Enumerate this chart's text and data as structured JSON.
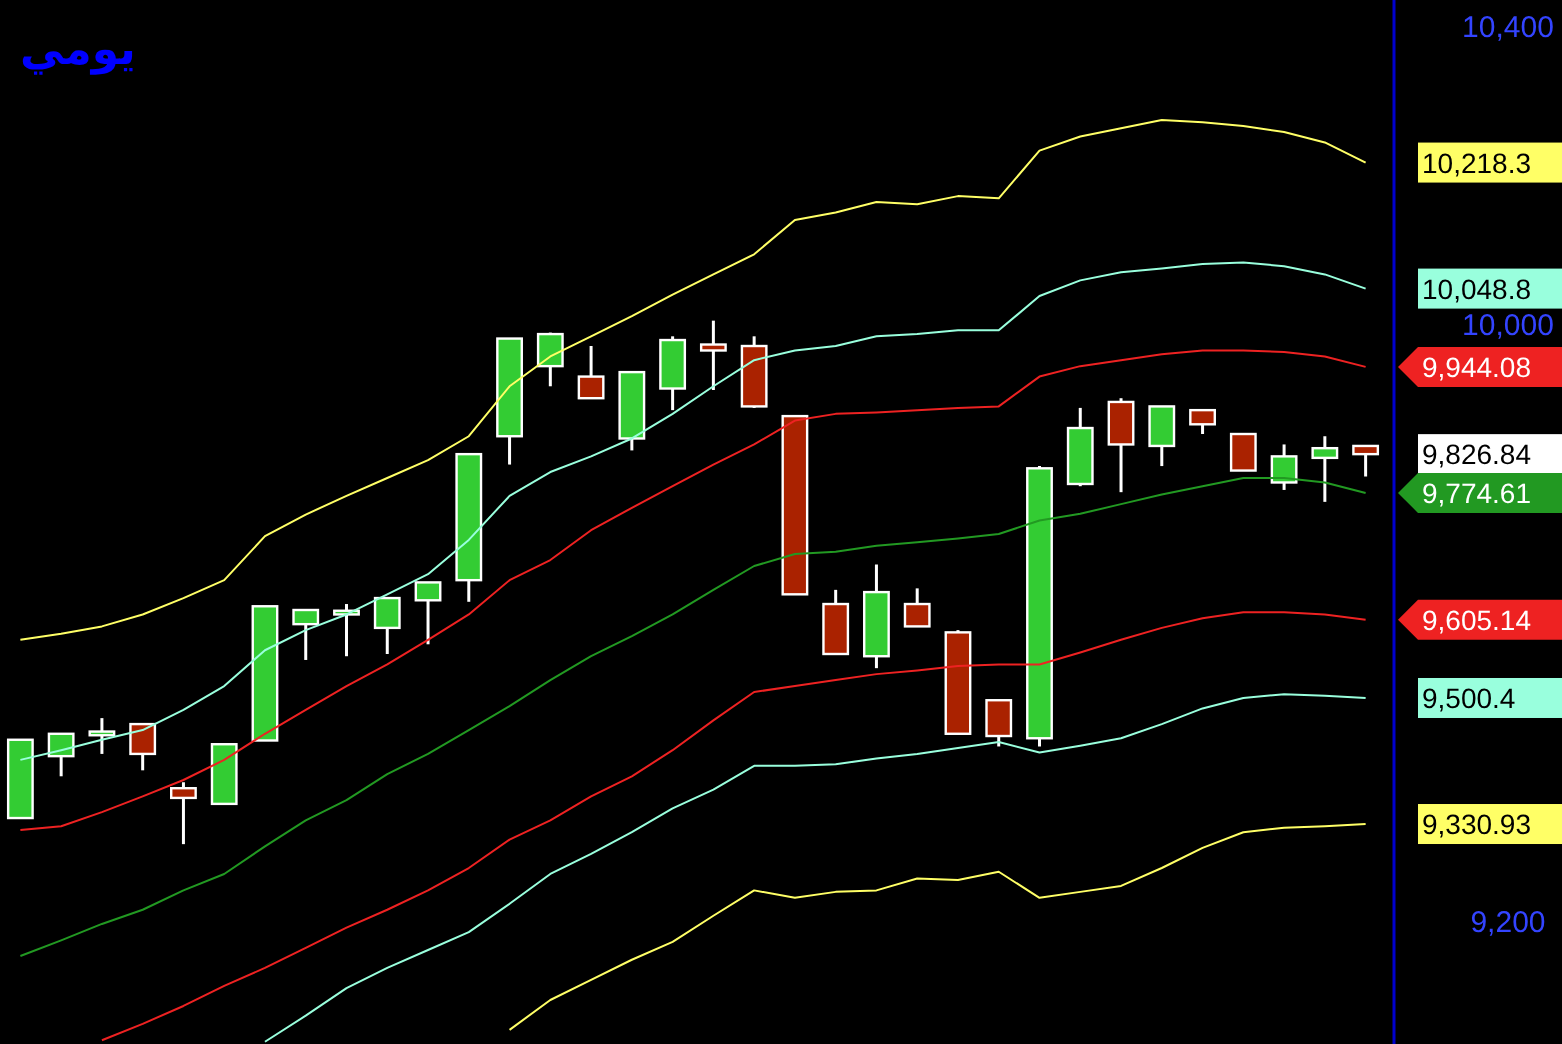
{
  "chart_data": [
    {
      "type": "candlestick",
      "title": "يومي",
      "categories": [
        null,
        null,
        null,
        null,
        null,
        null,
        null,
        null,
        null,
        null,
        null,
        null,
        null,
        null,
        null,
        null,
        null,
        null,
        null,
        null,
        null,
        null,
        null,
        null,
        null,
        null,
        null,
        null,
        null,
        null,
        null,
        null,
        null,
        null
      ],
      "ohlc": [
        [
          9339,
          9444,
          9339,
          9444
        ],
        [
          9422,
          9452,
          9395,
          9452
        ],
        [
          9450,
          9473,
          9425,
          9455
        ],
        [
          9465,
          9465,
          9403,
          9425
        ],
        [
          9379,
          9387,
          9304,
          9366
        ],
        [
          9358,
          9438,
          9358,
          9438
        ],
        [
          9443,
          9623,
          9443,
          9623
        ],
        [
          9599,
          9618,
          9551,
          9618
        ],
        [
          9612,
          9626,
          9556,
          9617
        ],
        [
          9594,
          9634,
          9559,
          9634
        ],
        [
          9631,
          9655,
          9572,
          9655
        ],
        [
          9658,
          9827,
          9629,
          9827
        ],
        [
          9851,
          9982,
          9813,
          9982
        ],
        [
          9945,
          9990,
          9918,
          9988
        ],
        [
          9931,
          9972,
          9902,
          9902
        ],
        [
          9848,
          9937,
          9832,
          9937
        ],
        [
          9915,
          9985,
          9886,
          9980
        ],
        [
          9974,
          10006,
          9913,
          9966
        ],
        [
          9972,
          9985,
          9889,
          9891
        ],
        [
          9878,
          9878,
          9639,
          9639
        ],
        [
          9626,
          9645,
          9559,
          9559
        ],
        [
          9556,
          9679,
          9540,
          9642
        ],
        [
          9626,
          9647,
          9596,
          9596
        ],
        [
          9588,
          9591,
          9452,
          9452
        ],
        [
          9497,
          9497,
          9435,
          9449
        ],
        [
          9446,
          9811,
          9435,
          9808
        ],
        [
          9787,
          9889,
          9784,
          9862
        ],
        [
          9897,
          9902,
          9776,
          9840
        ],
        [
          9838,
          9891,
          9811,
          9891
        ],
        [
          9886,
          9886,
          9854,
          9867
        ],
        [
          9854,
          9854,
          9805,
          9805
        ],
        [
          9789,
          9840,
          9779,
          9824
        ],
        [
          9822,
          9851,
          9763,
          9835
        ],
        [
          9838,
          9838,
          9797,
          9827
        ]
      ],
      "colors": [
        "#33cc33",
        "#33cc33",
        "#33cc33",
        "#aa2200",
        "#aa2200",
        "#33cc33",
        "#33cc33",
        "#33cc33",
        "#33cc33",
        "#33cc33",
        "#33cc33",
        "#33cc33",
        "#33cc33",
        "#33cc33",
        "#aa2200",
        "#33cc33",
        "#33cc33",
        "#aa2200",
        "#aa2200",
        "#aa2200",
        "#aa2200",
        "#33cc33",
        "#aa2200",
        "#aa2200",
        "#aa2200",
        "#33cc33",
        "#33cc33",
        "#aa2200",
        "#33cc33",
        "#aa2200",
        "#aa2200",
        "#33cc33",
        "#33cc33",
        "#aa2200"
      ],
      "ylim": [
        9036,
        10436
      ],
      "yticks": [
        {
          "value": 10400,
          "label": "10,400"
        },
        {
          "value": 10000,
          "label": "10,000"
        },
        {
          "value": 9200,
          "label": "9,200"
        }
      ],
      "annotations": [
        "9,826.84"
      ]
    },
    {
      "type": "line",
      "categories": [
        null,
        null,
        null,
        null,
        null,
        null,
        null,
        null,
        null,
        null,
        null,
        null,
        null,
        null,
        null,
        null,
        null,
        null,
        null,
        null,
        null,
        null,
        null,
        null,
        null,
        null,
        null,
        null,
        null,
        null,
        null,
        null,
        null,
        null
      ],
      "ylim": [
        9036,
        10436
      ],
      "annotations": [
        "10,218.3",
        "10,048.8",
        "9,944.08",
        "9,774.61",
        "9,605.14",
        "9,500.4",
        "9,330.93"
      ],
      "series": [
        {
          "type": "line",
          "color": "#ffff66",
          "values": [
            9578,
            9586,
            9596,
            9612,
            9634,
            9658,
            9717,
            9746,
            9771,
            9795,
            9819,
            9851,
            9918,
            9958,
            9985,
            10012,
            10041,
            10068,
            10095,
            10141,
            10151,
            10165,
            10162,
            10173,
            10170,
            10234,
            10253,
            10264,
            10275,
            10272,
            10267,
            10259,
            10245,
            10218
          ]
        },
        {
          "type": "line",
          "color": "#99ffdd",
          "values": [
            9417,
            9430,
            9444,
            9457,
            9484,
            9516,
            9564,
            9591,
            9612,
            9639,
            9666,
            9712,
            9771,
            9803,
            9824,
            9848,
            9881,
            9918,
            9953,
            9966,
            9972,
            9985,
            9988,
            9993,
            9993,
            10039,
            10060,
            10071,
            10076,
            10082,
            10084,
            10079,
            10068,
            10049
          ]
        },
        {
          "type": "line",
          "color": "#ee2222",
          "values": [
            9323,
            9328,
            9347,
            9368,
            9390,
            9417,
            9452,
            9484,
            9516,
            9545,
            9578,
            9612,
            9658,
            9685,
            9725,
            9755,
            9784,
            9813,
            9840,
            9872,
            9881,
            9883,
            9886,
            9889,
            9891,
            9931,
            9945,
            9953,
            9961,
            9966,
            9966,
            9964,
            9958,
            9944
          ]
        },
        {
          "type": "line",
          "color": "#229922",
          "values": [
            9154,
            9175,
            9197,
            9216,
            9242,
            9264,
            9301,
            9336,
            9363,
            9398,
            9425,
            9457,
            9489,
            9524,
            9556,
            9583,
            9612,
            9645,
            9677,
            9693,
            9696,
            9704,
            9709,
            9714,
            9720,
            9738,
            9747,
            9760,
            9773,
            9784,
            9795,
            9795,
            9789,
            9775
          ]
        },
        {
          "type": "line",
          "color": "#ee2222",
          "values": [
            null,
            null,
            9041,
            9063,
            9087,
            9114,
            9138,
            9165,
            9192,
            9216,
            9242,
            9272,
            9310,
            9336,
            9368,
            9395,
            9430,
            9470,
            9508,
            9516,
            9524,
            9532,
            9537,
            9543,
            9545,
            9545,
            9561,
            9578,
            9594,
            9607,
            9615,
            9615,
            9612,
            9605
          ]
        },
        {
          "type": "line",
          "color": "#99ffdd",
          "values": [
            null,
            null,
            null,
            null,
            null,
            null,
            9039,
            9074,
            9111,
            9138,
            9162,
            9186,
            9224,
            9264,
            9291,
            9320,
            9352,
            9377,
            9409,
            9409,
            9411,
            9419,
            9425,
            9433,
            9441,
            9427,
            9436,
            9446,
            9465,
            9486,
            9500,
            9505,
            9503,
            9500
          ]
        },
        {
          "type": "line",
          "color": "#ffff66",
          "values": [
            null,
            null,
            null,
            null,
            null,
            null,
            null,
            null,
            null,
            null,
            null,
            null,
            9055,
            9095,
            9122,
            9149,
            9173,
            9208,
            9242,
            9232,
            9240,
            9242,
            9258,
            9256,
            9267,
            9232,
            9240,
            9248,
            9272,
            9299,
            9320,
            9326,
            9328,
            9331
          ]
        }
      ]
    }
  ]
}
